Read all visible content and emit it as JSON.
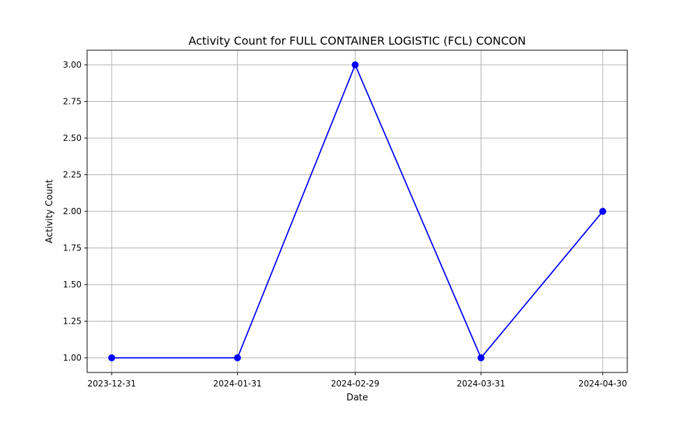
{
  "chart_data": {
    "type": "line",
    "title": "Activity Count for FULL CONTAINER LOGISTIC (FCL) CONCON",
    "xlabel": "Date",
    "ylabel": "Activity Count",
    "x": [
      "2023-12-31",
      "2024-01-31",
      "2024-02-29",
      "2024-03-31",
      "2024-04-30"
    ],
    "series": [
      {
        "values": [
          1,
          1,
          3,
          1,
          2
        ],
        "color": "#0000ff",
        "marker": "circle"
      }
    ],
    "x_ticks": [
      "2023-12-31",
      "2024-01-31",
      "2024-02-29",
      "2024-03-31",
      "2024-04-30"
    ],
    "y_ticks": [
      "1.00",
      "1.25",
      "1.50",
      "1.75",
      "2.00",
      "2.25",
      "2.50",
      "2.75",
      "3.00"
    ],
    "ylim": [
      0.9,
      3.1
    ],
    "grid": true,
    "colors": {
      "grid": "#b0b0b0",
      "axes": "#000000",
      "line": "#0000ff"
    }
  }
}
